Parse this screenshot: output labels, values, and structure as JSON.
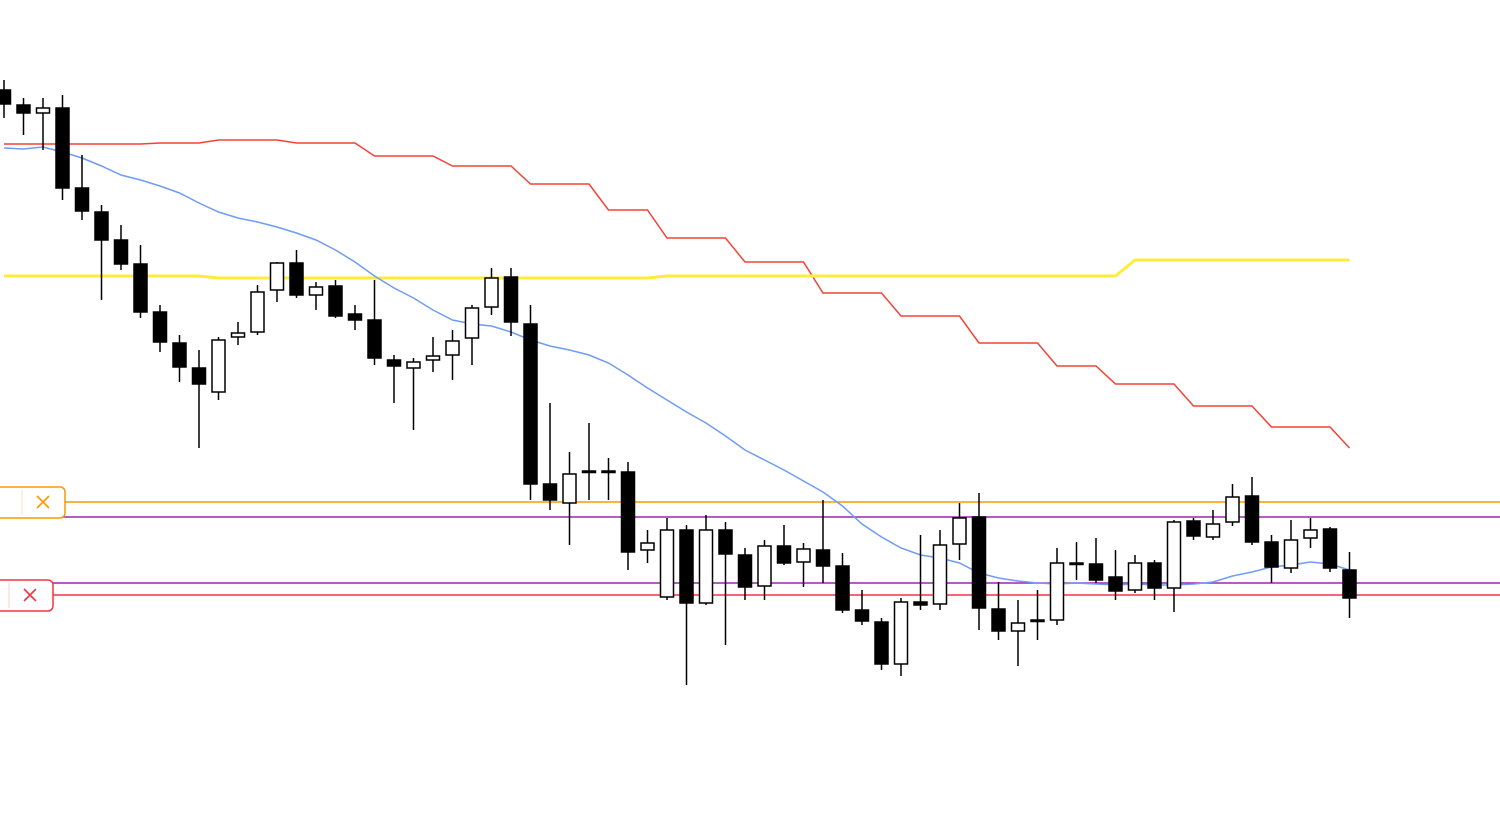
{
  "chart_data": {
    "type": "candlestick",
    "ylim": [
      0,
      814
    ],
    "up_color": "#ffffff",
    "down_color": "#000000",
    "open": [
      724,
      709,
      701,
      706,
      626,
      602,
      574,
      550,
      502,
      471,
      446,
      422,
      477,
      482,
      524,
      551,
      519,
      528,
      500,
      494,
      454,
      446,
      454,
      459,
      476,
      507,
      537,
      490,
      330,
      311,
      342,
      343,
      342,
      264,
      217,
      284,
      211,
      284,
      259,
      228,
      268,
      252,
      264,
      248,
      204,
      192,
      150,
      212,
      210,
      270,
      297,
      205,
      183,
      194,
      194,
      251,
      250,
      237,
      224,
      251,
      226,
      293,
      277,
      292,
      318,
      272,
      246,
      276,
      285,
      244
    ],
    "high": [
      734,
      716,
      716,
      719,
      659,
      609,
      589,
      569,
      509,
      479,
      464,
      477,
      492,
      529,
      552,
      564,
      532,
      534,
      509,
      534,
      459,
      456,
      477,
      484,
      509,
      546,
      546,
      509,
      411,
      362,
      391,
      356,
      352,
      284,
      296,
      289,
      299,
      292,
      266,
      274,
      289,
      271,
      314,
      261,
      224,
      196,
      216,
      279,
      284,
      311,
      321,
      232,
      214,
      224,
      266,
      272,
      276,
      264,
      259,
      254,
      294,
      296,
      304,
      330,
      337,
      279,
      294,
      296,
      287,
      262
    ],
    "low": [
      696,
      679,
      664,
      614,
      594,
      514,
      544,
      496,
      462,
      432,
      366,
      414,
      469,
      479,
      512,
      516,
      504,
      496,
      484,
      449,
      411,
      384,
      442,
      434,
      449,
      499,
      478,
      314,
      304,
      269,
      314,
      314,
      244,
      251,
      214,
      129,
      209,
      169,
      214,
      214,
      249,
      227,
      231,
      201,
      189,
      144,
      138,
      204,
      204,
      254,
      184,
      174,
      148,
      174,
      189,
      234,
      231,
      214,
      221,
      214,
      202,
      274,
      274,
      288,
      269,
      231,
      241,
      266,
      242,
      196
    ],
    "close": [
      710,
      701,
      706,
      626,
      603,
      574,
      550,
      502,
      472,
      447,
      430,
      474,
      481,
      522,
      551,
      519,
      527,
      498,
      494,
      456,
      448,
      452,
      458,
      473,
      506,
      536,
      492,
      330,
      314,
      340,
      343,
      343,
      262,
      271,
      284,
      211,
      284,
      260,
      227,
      268,
      251,
      265,
      248,
      204,
      193,
      150,
      212,
      209,
      269,
      296,
      206,
      183,
      191,
      194,
      251,
      251,
      234,
      223,
      251,
      226,
      292,
      278,
      290,
      317,
      272,
      247,
      274,
      284,
      246,
      216
    ],
    "series": [
      {
        "color": "#f44336",
        "values": [
          670,
          670,
          670,
          670,
          670,
          670,
          670,
          670,
          671,
          671,
          671,
          674,
          674,
          674,
          674,
          671,
          671,
          671,
          671,
          658,
          658,
          658,
          658,
          648,
          648,
          648,
          648,
          630,
          630,
          630,
          630,
          604,
          604,
          604,
          576,
          576,
          576,
          576,
          552,
          552,
          552,
          552,
          521,
          521,
          521,
          521,
          498,
          498,
          498,
          498,
          471,
          471,
          471,
          471,
          448,
          448,
          448,
          430,
          430,
          430,
          430,
          408,
          408,
          408,
          408,
          387,
          387,
          387,
          387,
          366
        ]
      },
      {
        "color": "#ffeb3b",
        "values": [
          538,
          538,
          538,
          538,
          538,
          538,
          538,
          538,
          538,
          538,
          538,
          536,
          536,
          536,
          536,
          536,
          536,
          536,
          536,
          536,
          536,
          536,
          536,
          536,
          536,
          536,
          536,
          536,
          536,
          536,
          536,
          536,
          536,
          536,
          538,
          538,
          538,
          538,
          538,
          538,
          538,
          538,
          538,
          538,
          538,
          538,
          538,
          538,
          538,
          538,
          538,
          538,
          538,
          538,
          538,
          538,
          538,
          538,
          554,
          554,
          554,
          554,
          554,
          554,
          554,
          554,
          554,
          554,
          554,
          554
        ]
      },
      {
        "color": "#6e9cf5",
        "values": [
          666,
          665,
          667,
          662,
          656,
          648,
          639,
          634,
          628,
          621,
          611,
          602,
          596,
          592,
          587,
          581,
          574,
          564,
          552,
          538,
          526,
          516,
          504,
          494,
          490,
          488,
          482,
          474,
          468,
          464,
          459,
          451,
          439,
          426,
          414,
          402,
          391,
          378,
          364,
          354,
          344,
          333,
          322,
          308,
          290,
          277,
          266,
          259,
          256,
          251,
          241,
          236,
          233,
          231,
          230,
          231,
          230,
          229,
          230,
          229,
          229,
          230,
          232,
          238,
          242,
          247,
          249,
          252,
          250,
          244
        ]
      }
    ],
    "hlines": [
      {
        "value": 312,
        "color": "#ff9800"
      },
      {
        "value": 297,
        "color": "#9c27b0"
      },
      {
        "value": 231,
        "color": "#9c27b0"
      },
      {
        "value": 219,
        "color": "#f23645"
      }
    ]
  }
}
